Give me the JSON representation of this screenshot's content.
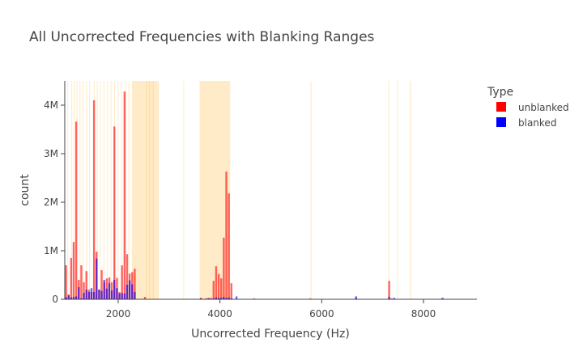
{
  "chart_data": {
    "type": "bar",
    "title": "All Uncorrected Frequencies with Blanking Ranges",
    "xlabel": "Uncorrected Frequency (Hz)",
    "ylabel": "count",
    "xlim": [
      950,
      9050
    ],
    "ylim": [
      0,
      4500000
    ],
    "x_ticks": [
      2000,
      4000,
      6000,
      8000
    ],
    "y_ticks": [
      0,
      1000000,
      2000000,
      3000000,
      4000000
    ],
    "y_tick_labels": [
      "0",
      "1M",
      "2M",
      "3M",
      "4M"
    ],
    "bin_width": 50,
    "legend": {
      "title": "Type",
      "placement": "top-right"
    },
    "series": [
      {
        "name": "unblanked",
        "color": "#ff0000",
        "x": [
          975,
          1025,
          1075,
          1125,
          1175,
          1225,
          1275,
          1325,
          1375,
          1425,
          1475,
          1525,
          1575,
          1625,
          1675,
          1725,
          1775,
          1825,
          1875,
          1925,
          1975,
          2025,
          2075,
          2125,
          2175,
          2225,
          2275,
          2325,
          2525,
          3625,
          3725,
          3775,
          3825,
          3875,
          3925,
          3975,
          4025,
          4075,
          4125,
          4175,
          4225,
          4675,
          5775,
          6675,
          7325,
          7375,
          8375
        ],
        "values": [
          700000,
          100000,
          850000,
          1180000,
          3660000,
          400000,
          700000,
          350000,
          580000,
          200000,
          150000,
          4100000,
          980000,
          200000,
          600000,
          350000,
          430000,
          450000,
          350000,
          3560000,
          440000,
          150000,
          700000,
          4280000,
          930000,
          530000,
          560000,
          630000,
          50000,
          30000,
          20000,
          30000,
          30000,
          380000,
          680000,
          520000,
          430000,
          1270000,
          2630000,
          2180000,
          330000,
          20000,
          20000,
          30000,
          380000,
          20000,
          20000
        ]
      },
      {
        "name": "blanked",
        "color": "#0000ff",
        "x": [
          975,
          1025,
          1075,
          1125,
          1175,
          1225,
          1275,
          1325,
          1375,
          1425,
          1475,
          1525,
          1575,
          1625,
          1675,
          1725,
          1775,
          1825,
          1875,
          1925,
          1975,
          2025,
          2075,
          2125,
          2175,
          2225,
          2275,
          2325,
          3625,
          3775,
          3875,
          3925,
          3975,
          4025,
          4075,
          4125,
          4175,
          4225,
          4325,
          6675,
          7325,
          7425,
          8375
        ],
        "values": [
          40000,
          80000,
          40000,
          50000,
          60000,
          250000,
          20000,
          130000,
          200000,
          150000,
          230000,
          150000,
          840000,
          200000,
          170000,
          400000,
          220000,
          330000,
          180000,
          400000,
          230000,
          120000,
          130000,
          120000,
          300000,
          390000,
          310000,
          150000,
          20000,
          20000,
          20000,
          40000,
          30000,
          30000,
          50000,
          30000,
          40000,
          20000,
          60000,
          60000,
          50000,
          30000,
          30000
        ]
      }
    ],
    "blanking_ranges": [
      [
        1000,
        1010
      ],
      [
        1080,
        1090
      ],
      [
        1130,
        1140
      ],
      [
        1180,
        1190
      ],
      [
        1240,
        1250
      ],
      [
        1300,
        1315
      ],
      [
        1370,
        1380
      ],
      [
        1430,
        1440
      ],
      [
        1520,
        1535
      ],
      [
        1580,
        1590
      ],
      [
        1640,
        1655
      ],
      [
        1710,
        1720
      ],
      [
        1780,
        1790
      ],
      [
        1850,
        1860
      ],
      [
        1920,
        1930
      ],
      [
        1990,
        2000
      ],
      [
        2060,
        2070
      ],
      [
        2140,
        2155
      ],
      [
        2200,
        2215
      ],
      [
        2270,
        2540
      ],
      [
        2540,
        2800
      ],
      [
        2550,
        2560
      ],
      [
        2610,
        2620
      ],
      [
        2680,
        2690
      ],
      [
        3280,
        3295
      ],
      [
        3600,
        3780
      ],
      [
        3780,
        3870
      ],
      [
        3870,
        3930
      ],
      [
        3930,
        3990
      ],
      [
        3990,
        4080
      ],
      [
        4080,
        4130
      ],
      [
        4130,
        4200
      ],
      [
        5780,
        5800
      ],
      [
        7310,
        7325
      ],
      [
        7480,
        7495
      ],
      [
        7740,
        7760
      ]
    ],
    "blanking_color": "#ffa500"
  }
}
